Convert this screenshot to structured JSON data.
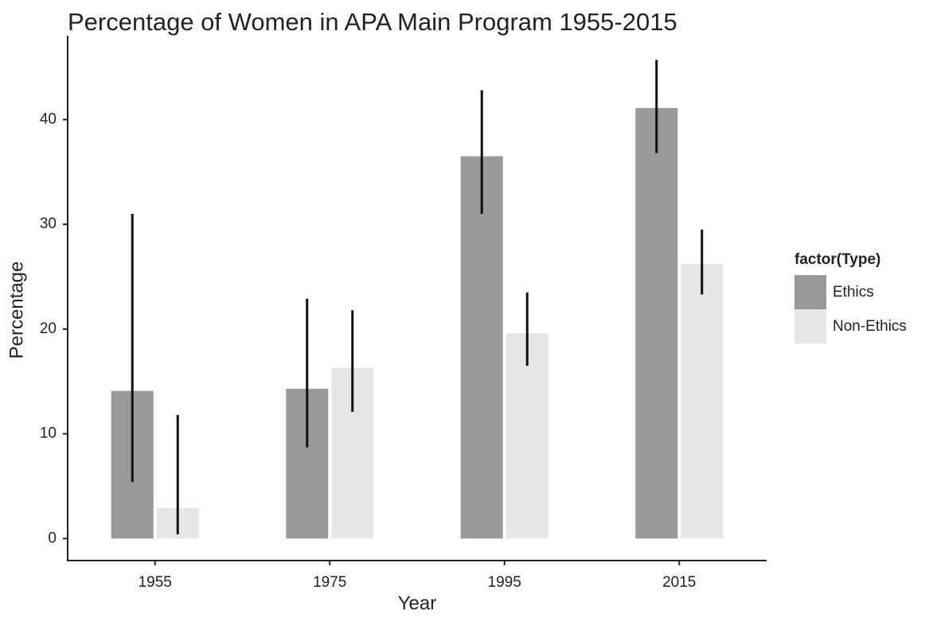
{
  "chart_data": {
    "type": "bar",
    "title": "Percentage of Women in APA Main Program 1955-2015",
    "x_label": "Year",
    "y_label": "Percentage",
    "categories": [
      "1955",
      "1975",
      "1995",
      "2015"
    ],
    "legend_title": "factor(Type)",
    "series": [
      {
        "name": "Ethics",
        "color": "#999999",
        "values": [
          14.1,
          14.3,
          36.5,
          41.1
        ],
        "lower": [
          5.4,
          8.7,
          31.0,
          36.8
        ],
        "upper": [
          31.0,
          22.9,
          42.8,
          45.7
        ]
      },
      {
        "name": "Non-Ethics",
        "color": "#e6e6e6",
        "values": [
          2.9,
          16.3,
          19.6,
          26.2
        ],
        "lower": [
          0.4,
          12.1,
          16.5,
          23.3
        ],
        "upper": [
          11.8,
          21.8,
          23.5,
          29.5
        ]
      }
    ],
    "error_color": "#111111",
    "ylim": [
      -2.1,
      48
    ],
    "yticks": [
      0,
      10,
      20,
      30,
      40
    ],
    "grid": false
  }
}
